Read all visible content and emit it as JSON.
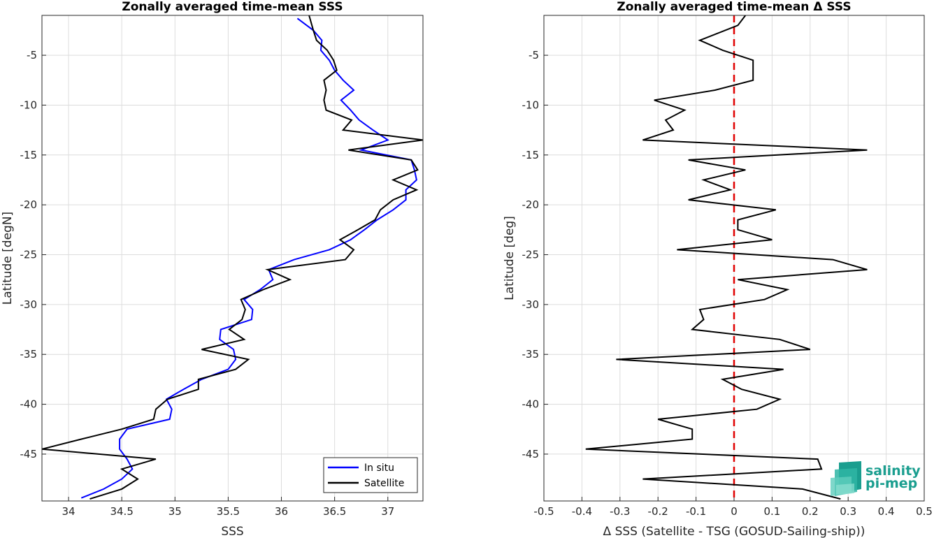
{
  "chart_data": [
    {
      "type": "line",
      "title": "Zonally averaged time-mean SSS",
      "xlabel": "SSS",
      "ylabel": "Latitude [degN]",
      "xlim": [
        33.75,
        37.33
      ],
      "ylim": [
        -49.7,
        -1.0
      ],
      "xticks": [
        34,
        34.5,
        35,
        35.5,
        36,
        36.5,
        37
      ],
      "yticks": [
        -5,
        -10,
        -15,
        -20,
        -25,
        -30,
        -35,
        -40,
        -45
      ],
      "grid": true,
      "legend_location": "bottom-right",
      "legend": [
        "In situ",
        "Satellite"
      ],
      "series": [
        {
          "name": "In situ",
          "color": "#0000ff",
          "lat": [
            -1.3,
            -2.5,
            -3.5,
            -4.5,
            -5.5,
            -6.5,
            -7.5,
            -8.5,
            -9.5,
            -10.5,
            -11.5,
            -12.5,
            -13.5,
            -14.5,
            -15.5,
            -16.5,
            -17.5,
            -18.5,
            -19.5,
            -20.5,
            -21.5,
            -22.5,
            -23.5,
            -24.5,
            -25.5,
            -26.5,
            -27.5,
            -28.5,
            -29.5,
            -30.5,
            -31.5,
            -32.5,
            -33.5,
            -34.5,
            -35.5,
            -36.5,
            -37.5,
            -38.5,
            -39.5,
            -40.5,
            -41.5,
            -42.5,
            -43.5,
            -44.5,
            -45.5,
            -46.5,
            -47.5,
            -48.5,
            -49.4
          ],
          "values": [
            36.15,
            36.3,
            36.38,
            36.37,
            36.45,
            36.5,
            36.58,
            36.68,
            36.56,
            36.65,
            36.73,
            36.86,
            37.0,
            36.75,
            37.22,
            37.25,
            37.27,
            37.17,
            37.17,
            37.05,
            36.9,
            36.78,
            36.65,
            36.45,
            36.12,
            35.88,
            35.92,
            35.8,
            35.65,
            35.73,
            35.72,
            35.43,
            35.42,
            35.55,
            35.57,
            35.5,
            35.25,
            35.08,
            34.92,
            34.97,
            34.95,
            34.55,
            34.48,
            34.48,
            34.55,
            34.6,
            34.5,
            34.33,
            34.12
          ]
        },
        {
          "name": "Satellite",
          "color": "#000000",
          "lat": [
            -1.0,
            -2.5,
            -3.5,
            -4.5,
            -5.5,
            -6.5,
            -7.5,
            -8.5,
            -9.5,
            -10.5,
            -11.5,
            -12.5,
            -13.5,
            -14.5,
            -15.5,
            -16.5,
            -17.5,
            -18.5,
            -19.5,
            -20.5,
            -21.5,
            -22.5,
            -23.5,
            -24.5,
            -25.5,
            -26.5,
            -27.5,
            -28.5,
            -29.5,
            -30.5,
            -31.5,
            -32.5,
            -33.5,
            -34.5,
            -35.5,
            -36.5,
            -37.5,
            -38.5,
            -39.5,
            -40.5,
            -41.5,
            -42.5,
            -43.5,
            -44.5,
            -45.5,
            -46.5,
            -47.5,
            -48.5,
            -49.5
          ],
          "values": [
            36.26,
            36.3,
            36.33,
            36.43,
            36.49,
            36.52,
            36.4,
            36.42,
            36.4,
            36.42,
            36.66,
            36.58,
            37.33,
            36.63,
            37.22,
            37.28,
            37.05,
            37.27,
            37.05,
            36.93,
            36.88,
            36.72,
            36.55,
            36.68,
            36.6,
            35.87,
            36.08,
            35.83,
            35.62,
            35.66,
            35.63,
            35.51,
            35.65,
            35.25,
            35.69,
            35.57,
            35.22,
            35.22,
            34.93,
            34.82,
            34.8,
            34.5,
            34.12,
            33.75,
            34.82,
            34.5,
            34.65,
            34.5,
            34.2
          ]
        }
      ]
    },
    {
      "type": "line",
      "title": "Zonally averaged time-mean Δ SSS",
      "xlabel": "Δ SSS (Satellite - TSG (GOSUD-Sailing-ship))",
      "ylabel": "Latitude [deg]",
      "xlim": [
        -0.5,
        0.5
      ],
      "ylim": [
        -49.7,
        -1.0
      ],
      "xticks": [
        -0.5,
        -0.4,
        -0.3,
        -0.2,
        -0.1,
        0,
        0.1,
        0.2,
        0.3,
        0.4,
        0.5
      ],
      "yticks": [
        -5,
        -10,
        -15,
        -20,
        -25,
        -30,
        -35,
        -40,
        -45
      ],
      "grid": true,
      "reference_line": {
        "x": 0,
        "color": "#e00000",
        "style": "dashed"
      },
      "series": [
        {
          "name": "",
          "color": "#000000",
          "lat": [
            -1.0,
            -2.0,
            -3.5,
            -4.5,
            -5.5,
            -6.5,
            -7.5,
            -8.5,
            -9.5,
            -10.5,
            -11.5,
            -12.5,
            -13.5,
            -14.5,
            -15.5,
            -16.5,
            -17.5,
            -18.5,
            -19.5,
            -20.5,
            -21.5,
            -22.5,
            -23.5,
            -24.5,
            -25.5,
            -26.5,
            -27.5,
            -28.5,
            -29.5,
            -30.5,
            -31.5,
            -32.5,
            -33.5,
            -34.5,
            -35.5,
            -36.5,
            -37.5,
            -38.5,
            -39.5,
            -40.5,
            -41.5,
            -42.5,
            -43.5,
            -44.5,
            -45.5,
            -46.5,
            -47.5,
            -48.5,
            -49.5
          ],
          "values": [
            0.03,
            0.01,
            -0.09,
            -0.03,
            0.05,
            0.05,
            0.05,
            -0.05,
            -0.21,
            -0.13,
            -0.18,
            -0.16,
            -0.24,
            0.35,
            -0.12,
            0.03,
            -0.08,
            -0.01,
            -0.12,
            0.11,
            0.01,
            0.01,
            0.1,
            -0.15,
            0.26,
            0.35,
            0.01,
            0.14,
            0.08,
            -0.09,
            -0.08,
            -0.11,
            0.12,
            0.2,
            -0.31,
            0.13,
            -0.03,
            0.02,
            0.12,
            0.06,
            -0.2,
            -0.11,
            -0.11,
            -0.39,
            0.22,
            0.23,
            -0.24,
            0.18,
            0.28
          ]
        }
      ]
    }
  ],
  "logo": {
    "line1": "salinity",
    "line2": "pi-mep",
    "color": "#1a9e8f"
  }
}
